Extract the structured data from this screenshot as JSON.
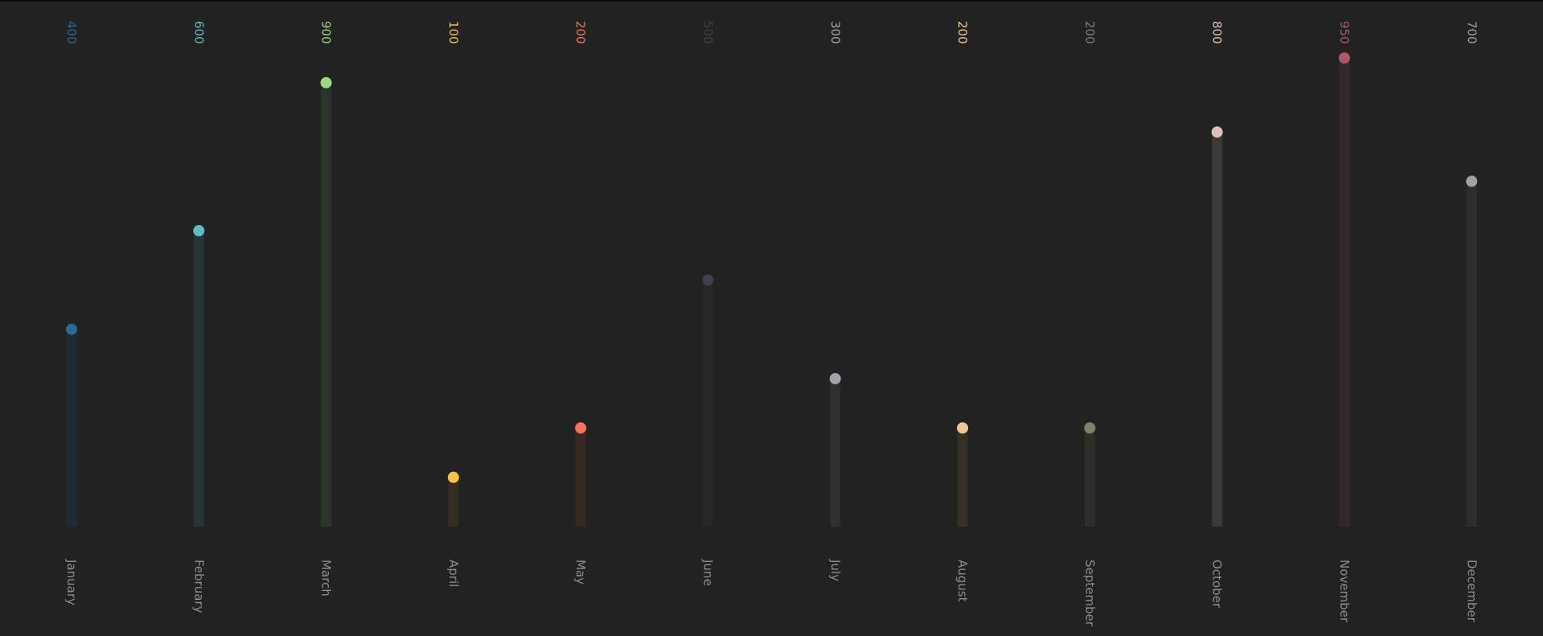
{
  "chart_data": {
    "type": "lollipop",
    "title": "",
    "xlabel": "",
    "ylabel": "",
    "ylim": [
      0,
      950
    ],
    "grid": false,
    "legend": "none",
    "categories": [
      "January",
      "February",
      "March",
      "April",
      "May",
      "June",
      "July",
      "August",
      "September",
      "October",
      "November",
      "December"
    ],
    "values": [
      400,
      600,
      900,
      100,
      200,
      500,
      300,
      200,
      200,
      800,
      950,
      700
    ],
    "colors": [
      "#2a6a97",
      "#5fbcc4",
      "#9ad87b",
      "#f6c244",
      "#f2725c",
      "#3e4150",
      "#a0a2ae",
      "#ecca95",
      "#76876a",
      "#dcc2b6",
      "#ad5868",
      "#9ca39a"
    ],
    "stem_colors": [
      "#1d2b33",
      "#263435",
      "#2a3429",
      "#352d1f",
      "#372824",
      "#272727",
      "#2f2f2f",
      "#333027",
      "#2e2e2a",
      "#3c3835",
      "#342929",
      "#2e2f2d"
    ]
  }
}
